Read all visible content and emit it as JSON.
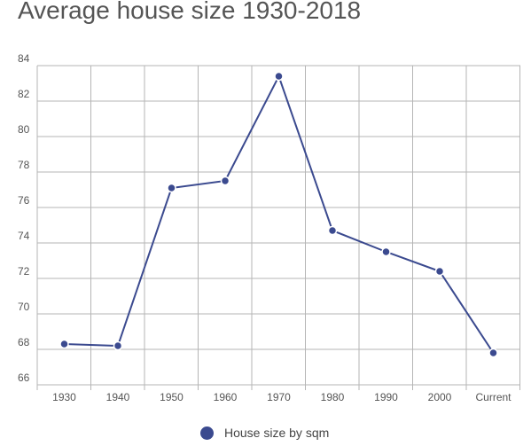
{
  "chart_data": {
    "type": "line",
    "title": "Average house size 1930-2018",
    "categories": [
      "1930",
      "1940",
      "1950",
      "1960",
      "1970",
      "1980",
      "1990",
      "2000",
      "Current"
    ],
    "series": [
      {
        "name": "House size by sqm",
        "values": [
          68.3,
          68.2,
          77.1,
          77.5,
          83.4,
          74.7,
          73.5,
          72.4,
          67.8
        ],
        "color": "#3b4a8f"
      }
    ],
    "ylim": [
      66,
      84
    ],
    "yticks": [
      66,
      68,
      70,
      72,
      74,
      76,
      78,
      80,
      82,
      84
    ],
    "xlabel": "",
    "ylabel": "",
    "grid": true,
    "legend": "bottom"
  }
}
